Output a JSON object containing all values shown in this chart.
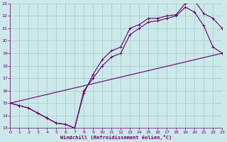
{
  "xlabel": "Windchill (Refroidissement éolien,°C)",
  "bg_color": "#cce8e8",
  "grid_color": "#99cccc",
  "line_color": "#660066",
  "xlim": [
    0,
    23
  ],
  "ylim": [
    13,
    23
  ],
  "xticks": [
    0,
    1,
    2,
    3,
    4,
    5,
    6,
    7,
    8,
    9,
    10,
    11,
    12,
    13,
    14,
    15,
    16,
    17,
    18,
    19,
    20,
    21,
    22,
    23
  ],
  "yticks": [
    13,
    14,
    15,
    16,
    17,
    18,
    19,
    20,
    21,
    22,
    23
  ],
  "line1_x": [
    0,
    1,
    2,
    3,
    4,
    5,
    6,
    7,
    8,
    9,
    10,
    11,
    12,
    13,
    14,
    15,
    16,
    17,
    18,
    19,
    20,
    21,
    22,
    23
  ],
  "line1_y": [
    15,
    14.8,
    14.6,
    14.2,
    13.8,
    13.4,
    13.3,
    13.0,
    15.8,
    17.3,
    18.5,
    19.2,
    19.5,
    21.0,
    21.3,
    21.8,
    21.8,
    22.0,
    22.1,
    23.0,
    23.2,
    22.2,
    21.8,
    21.0
  ],
  "line2_x": [
    0,
    1,
    2,
    3,
    4,
    5,
    6,
    7,
    8,
    9,
    10,
    11,
    12,
    13,
    14,
    15,
    16,
    17,
    18,
    19,
    20,
    21,
    22,
    23
  ],
  "line2_y": [
    15,
    14.8,
    14.6,
    14.2,
    13.8,
    13.4,
    13.3,
    13.0,
    16.0,
    17.0,
    18.0,
    18.7,
    19.0,
    20.5,
    21.0,
    21.5,
    21.6,
    21.8,
    22.0,
    22.7,
    22.3,
    21.2,
    19.5,
    19.0
  ],
  "line3_x": [
    0,
    23
  ],
  "line3_y": [
    15,
    19.0
  ]
}
